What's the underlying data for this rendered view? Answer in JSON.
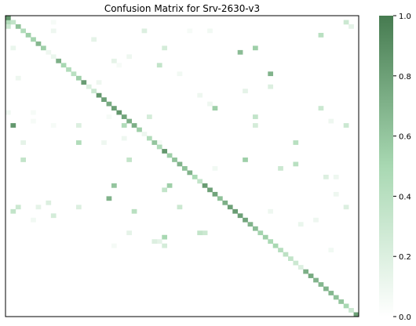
{
  "chart_data": {
    "type": "heatmap",
    "title": "Confusion Matrix for Srv-2630-v3",
    "size": 70,
    "value_range": [
      0.0,
      1.0
    ],
    "colormap": {
      "low": "#ffffff",
      "mid": "#a8d8b2",
      "high": "#467b50"
    },
    "colorbar": {
      "ticks": [
        0.0,
        0.2,
        0.4,
        0.6,
        0.8,
        1.0
      ],
      "tick_labels": [
        "0.0",
        "0.2",
        "0.4",
        "0.6",
        "0.8",
        "1.0"
      ]
    },
    "x_ticks_visible": false,
    "y_ticks_visible": false,
    "diagonal": [
      0.85,
      0.35,
      0.62,
      0.45,
      0.55,
      0.52,
      0.68,
      0.55,
      0.1,
      0.12,
      0.72,
      0.5,
      0.45,
      0.4,
      0.55,
      0.82,
      0.2,
      0.3,
      0.85,
      0.8,
      0.75,
      0.8,
      0.85,
      0.78,
      0.72,
      0.72,
      0.55,
      0.1,
      0.45,
      0.6,
      0.45,
      0.85,
      0.55,
      0.62,
      0.7,
      0.62,
      0.7,
      0.48,
      0.35,
      0.82,
      0.8,
      0.78,
      0.62,
      0.72,
      0.8,
      0.82,
      0.8,
      0.78,
      0.7,
      0.65,
      0.52,
      0.55,
      0.48,
      0.5,
      0.42,
      0.38,
      0.35,
      0.3,
      0.2,
      0.72,
      0.75,
      0.7,
      0.68,
      0.7,
      0.68,
      0.62,
      0.6,
      0.5,
      0.3,
      0.8
    ],
    "off_diagonal": [
      {
        "row": 1,
        "col": 0,
        "value": 0.45
      },
      {
        "row": 2,
        "col": 0,
        "value": 0.3
      },
      {
        "row": 1,
        "col": 9,
        "value": 0.05
      },
      {
        "row": 1,
        "col": 67,
        "value": 0.3
      },
      {
        "row": 2,
        "col": 68,
        "value": 0.15
      },
      {
        "row": 3,
        "col": 9,
        "value": 0.1
      },
      {
        "row": 3,
        "col": 27,
        "value": 0.2
      },
      {
        "row": 4,
        "col": 62,
        "value": 0.4
      },
      {
        "row": 5,
        "col": 17,
        "value": 0.15
      },
      {
        "row": 3,
        "col": 36,
        "value": 0.05
      },
      {
        "row": 3,
        "col": 40,
        "value": 0.08
      },
      {
        "row": 7,
        "col": 1,
        "value": 0.12
      },
      {
        "row": 7,
        "col": 31,
        "value": 0.25
      },
      {
        "row": 7,
        "col": 49,
        "value": 0.55
      },
      {
        "row": 8,
        "col": 46,
        "value": 0.65
      },
      {
        "row": 9,
        "col": 24,
        "value": 0.1
      },
      {
        "row": 10,
        "col": 21,
        "value": 0.15
      },
      {
        "row": 11,
        "col": 30,
        "value": 0.35
      },
      {
        "row": 11,
        "col": 22,
        "value": 0.05
      },
      {
        "row": 13,
        "col": 52,
        "value": 0.7
      },
      {
        "row": 13,
        "col": 34,
        "value": 0.08
      },
      {
        "row": 14,
        "col": 2,
        "value": 0.1
      },
      {
        "row": 15,
        "col": 18,
        "value": 0.1
      },
      {
        "row": 16,
        "col": 52,
        "value": 0.2
      },
      {
        "row": 17,
        "col": 47,
        "value": 0.15
      },
      {
        "row": 18,
        "col": 38,
        "value": 0.1
      },
      {
        "row": 20,
        "col": 40,
        "value": 0.1
      },
      {
        "row": 21,
        "col": 41,
        "value": 0.55
      },
      {
        "row": 21,
        "col": 62,
        "value": 0.3
      },
      {
        "row": 22,
        "col": 0,
        "value": 0.08
      },
      {
        "row": 22,
        "col": 5,
        "value": 0.05
      },
      {
        "row": 23,
        "col": 28,
        "value": 0.25
      },
      {
        "row": 23,
        "col": 49,
        "value": 0.35
      },
      {
        "row": 23,
        "col": 20,
        "value": 0.05
      },
      {
        "row": 24,
        "col": 64,
        "value": 0.1
      },
      {
        "row": 24,
        "col": 5,
        "value": 0.05
      },
      {
        "row": 25,
        "col": 1,
        "value": 0.85
      },
      {
        "row": 25,
        "col": 23,
        "value": 0.45
      },
      {
        "row": 25,
        "col": 14,
        "value": 0.2
      },
      {
        "row": 25,
        "col": 49,
        "value": 0.25
      },
      {
        "row": 25,
        "col": 67,
        "value": 0.3
      },
      {
        "row": 25,
        "col": 9,
        "value": 0.05
      },
      {
        "row": 29,
        "col": 3,
        "value": 0.15
      },
      {
        "row": 29,
        "col": 14,
        "value": 0.45
      },
      {
        "row": 29,
        "col": 19,
        "value": 0.1
      },
      {
        "row": 29,
        "col": 57,
        "value": 0.4
      },
      {
        "row": 28,
        "col": 23,
        "value": 0.1
      },
      {
        "row": 29,
        "col": 30,
        "value": 0.05
      },
      {
        "row": 33,
        "col": 3,
        "value": 0.35
      },
      {
        "row": 33,
        "col": 24,
        "value": 0.35
      },
      {
        "row": 33,
        "col": 47,
        "value": 0.55
      },
      {
        "row": 34,
        "col": 57,
        "value": 0.4
      },
      {
        "row": 35,
        "col": 54,
        "value": 0.3
      },
      {
        "row": 35,
        "col": 41,
        "value": 0.08
      },
      {
        "row": 37,
        "col": 63,
        "value": 0.2
      },
      {
        "row": 37,
        "col": 65,
        "value": 0.1
      },
      {
        "row": 39,
        "col": 21,
        "value": 0.6
      },
      {
        "row": 39,
        "col": 32,
        "value": 0.55
      },
      {
        "row": 40,
        "col": 31,
        "value": 0.35
      },
      {
        "row": 41,
        "col": 65,
        "value": 0.1
      },
      {
        "row": 42,
        "col": 20,
        "value": 0.7
      },
      {
        "row": 43,
        "col": 8,
        "value": 0.2
      },
      {
        "row": 44,
        "col": 2,
        "value": 0.3
      },
      {
        "row": 44,
        "col": 14,
        "value": 0.2
      },
      {
        "row": 44,
        "col": 34,
        "value": 0.3
      },
      {
        "row": 44,
        "col": 67,
        "value": 0.2
      },
      {
        "row": 44,
        "col": 6,
        "value": 0.15
      },
      {
        "row": 45,
        "col": 1,
        "value": 0.35
      },
      {
        "row": 45,
        "col": 25,
        "value": 0.4
      },
      {
        "row": 45,
        "col": 52,
        "value": 0.1
      },
      {
        "row": 46,
        "col": 9,
        "value": 0.25
      },
      {
        "row": 47,
        "col": 5,
        "value": 0.08
      },
      {
        "row": 47,
        "col": 61,
        "value": 0.1
      },
      {
        "row": 48,
        "col": 58,
        "value": 0.12
      },
      {
        "row": 50,
        "col": 24,
        "value": 0.15
      },
      {
        "row": 50,
        "col": 39,
        "value": 0.3
      },
      {
        "row": 50,
        "col": 38,
        "value": 0.35
      },
      {
        "row": 51,
        "col": 31,
        "value": 0.5
      },
      {
        "row": 52,
        "col": 30,
        "value": 0.15
      },
      {
        "row": 52,
        "col": 29,
        "value": 0.2
      },
      {
        "row": 53,
        "col": 21,
        "value": 0.06
      },
      {
        "row": 53,
        "col": 31,
        "value": 0.25
      },
      {
        "row": 54,
        "col": 64,
        "value": 0.08
      }
    ]
  }
}
